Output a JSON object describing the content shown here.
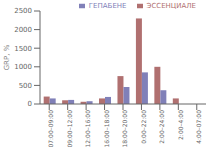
{
  "chart_data": {
    "type": "bar",
    "ylabel": "GRP, %",
    "categories": [
      "07:00–09:00",
      "09:00–12:00",
      "12:00–16:00",
      "16:00–18:00",
      "18:00–20:00",
      "0:00–22:00",
      "2:00–24:00",
      "2:00–4:00",
      "4:00–07:00"
    ],
    "series": [
      {
        "name": "ЭССЕНЦИАЛЕ",
        "color": "#b07070",
        "values": [
          200,
          100,
          60,
          150,
          750,
          2300,
          1000,
          150,
          0
        ]
      },
      {
        "name": "ГЕПАБЕНЕ",
        "color": "#8080b8",
        "values": [
          150,
          110,
          75,
          190,
          460,
          850,
          370,
          0,
          0
        ]
      }
    ],
    "ylim": [
      0,
      2500
    ],
    "yticks": [
      0,
      500,
      1000,
      1500,
      2000,
      2500
    ],
    "legend": "upper right",
    "grid": false
  }
}
